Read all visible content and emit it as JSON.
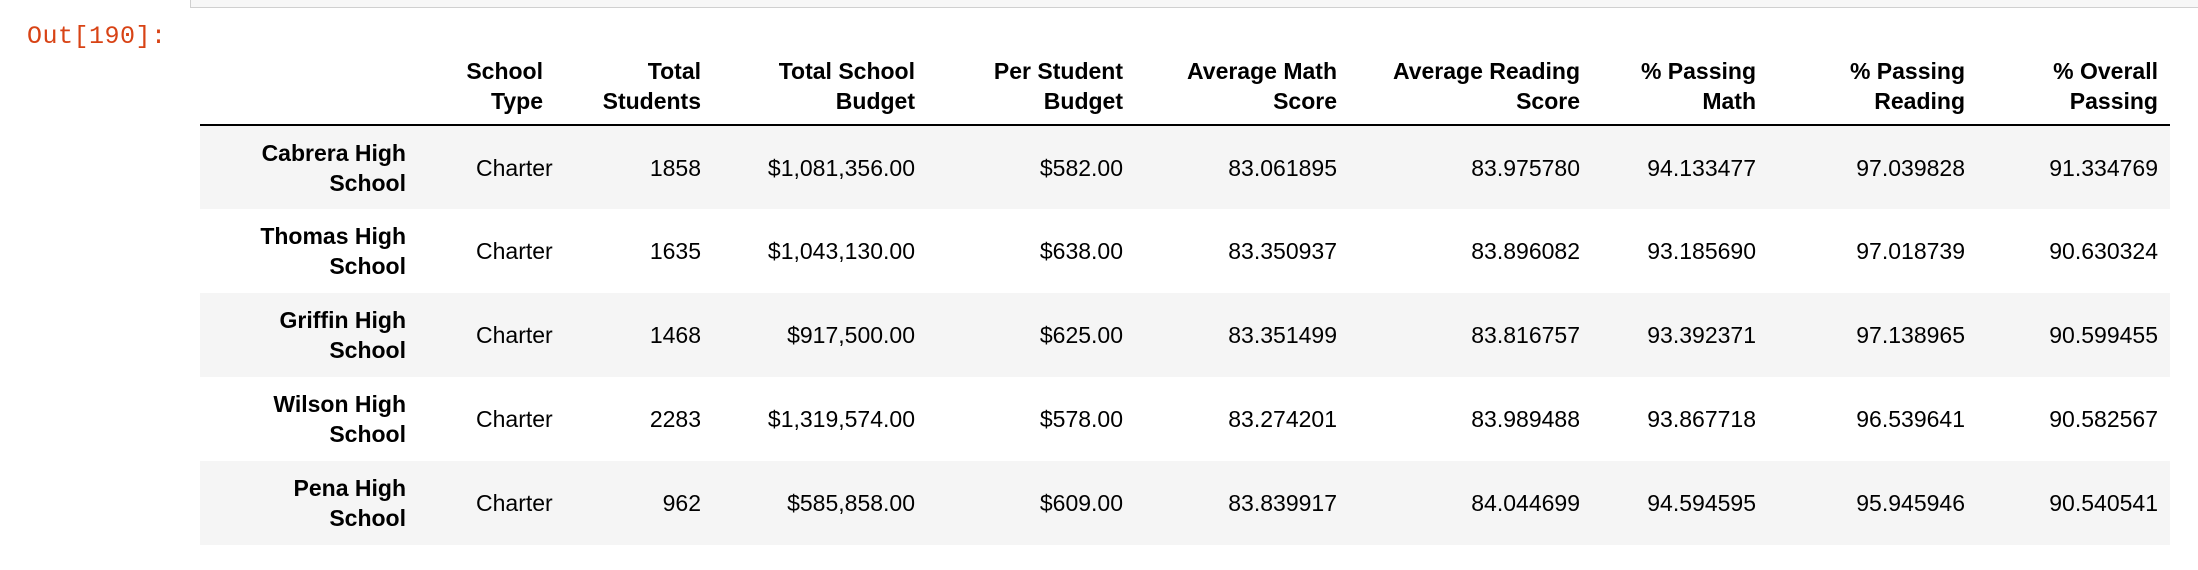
{
  "prompt": "Out[190]:",
  "columns": [
    "",
    "School Type",
    "Total Students",
    "Total School Budget",
    "Per Student Budget",
    "Average Math Score",
    "Average Reading Score",
    "% Passing Math",
    "% Passing Reading",
    "% Overall Passing"
  ],
  "rows": [
    {
      "school": "Cabrera High School",
      "type": "Charter",
      "students": "1858",
      "budget": "$1,081,356.00",
      "per_student": "$582.00",
      "math": "83.061895",
      "reading": "83.975780",
      "pass_math": "94.133477",
      "pass_reading": "97.039828",
      "overall": "91.334769"
    },
    {
      "school": "Thomas High School",
      "type": "Charter",
      "students": "1635",
      "budget": "$1,043,130.00",
      "per_student": "$638.00",
      "math": "83.350937",
      "reading": "83.896082",
      "pass_math": "93.185690",
      "pass_reading": "97.018739",
      "overall": "90.630324"
    },
    {
      "school": "Griffin High School",
      "type": "Charter",
      "students": "1468",
      "budget": "$917,500.00",
      "per_student": "$625.00",
      "math": "83.351499",
      "reading": "83.816757",
      "pass_math": "93.392371",
      "pass_reading": "97.138965",
      "overall": "90.599455"
    },
    {
      "school": "Wilson High School",
      "type": "Charter",
      "students": "2283",
      "budget": "$1,319,574.00",
      "per_student": "$578.00",
      "math": "83.274201",
      "reading": "83.989488",
      "pass_math": "93.867718",
      "pass_reading": "96.539641",
      "overall": "90.582567"
    },
    {
      "school": "Pena High School",
      "type": "Charter",
      "students": "962",
      "budget": "$585,858.00",
      "per_student": "$609.00",
      "math": "83.839917",
      "reading": "84.044699",
      "pass_math": "94.594595",
      "pass_reading": "95.945946",
      "overall": "90.540541"
    }
  ]
}
